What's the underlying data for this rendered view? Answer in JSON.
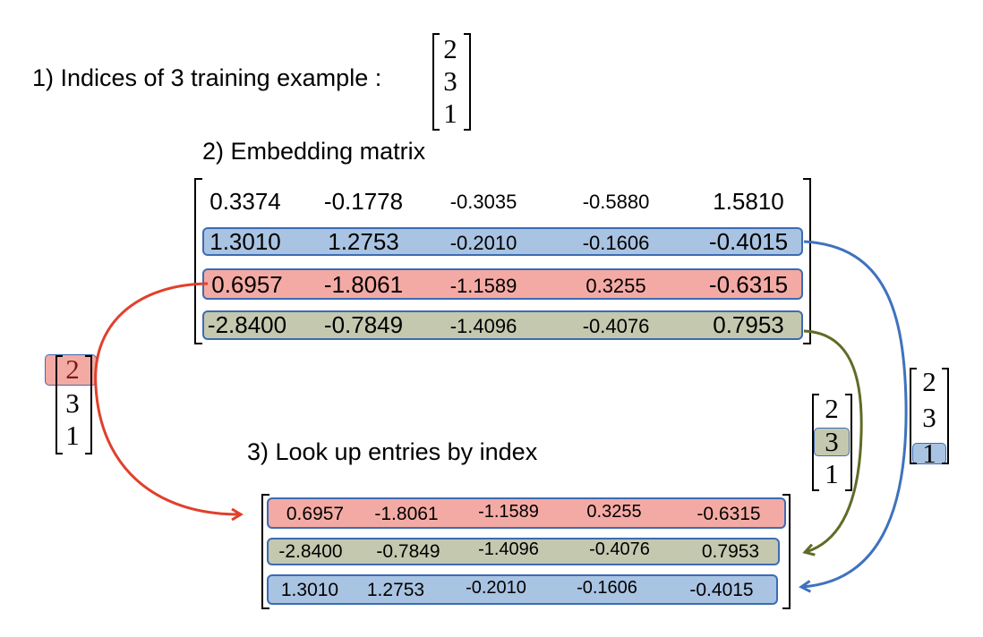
{
  "step1": {
    "label": "1) Indices of 3 training example :",
    "indices": [
      "2",
      "3",
      "1"
    ]
  },
  "step2": {
    "label": "2) Embedding matrix",
    "rows": [
      [
        "0.3374",
        "-0.1778",
        "-0.3035",
        "-0.5880",
        "1.5810"
      ],
      [
        "1.3010",
        "1.2753",
        "-0.2010",
        "-0.1606",
        "-0.4015"
      ],
      [
        "0.6957",
        "-1.8061",
        "-1.1589",
        "0.3255",
        "-0.6315"
      ],
      [
        "-2.8400",
        "-0.7849",
        "-1.4096",
        "-0.4076",
        "0.7953"
      ]
    ]
  },
  "step3": {
    "label": "3) Look up entries by index",
    "rows": [
      [
        "0.6957",
        "-1.8061",
        "-1.1589",
        "0.3255",
        "-0.6315"
      ],
      [
        "-2.8400",
        "-0.7849",
        "-1.4096",
        "-0.4076",
        "0.7953"
      ],
      [
        "1.3010",
        "1.2753",
        "-0.2010",
        "-0.1606",
        "-0.4015"
      ]
    ]
  },
  "lookup_vectors": {
    "left": [
      "2",
      "3",
      "1"
    ],
    "middle": [
      "2",
      "3",
      "1"
    ],
    "right": [
      "2",
      "3",
      "1"
    ]
  },
  "colors": {
    "blue": "#a9c3e2",
    "red": "#f4aaa4",
    "green": "#c3c8af",
    "border": "#3d6bb3",
    "arrow_red": "#e0402c",
    "arrow_blue": "#3f72be",
    "arrow_green": "#5f6c26"
  }
}
